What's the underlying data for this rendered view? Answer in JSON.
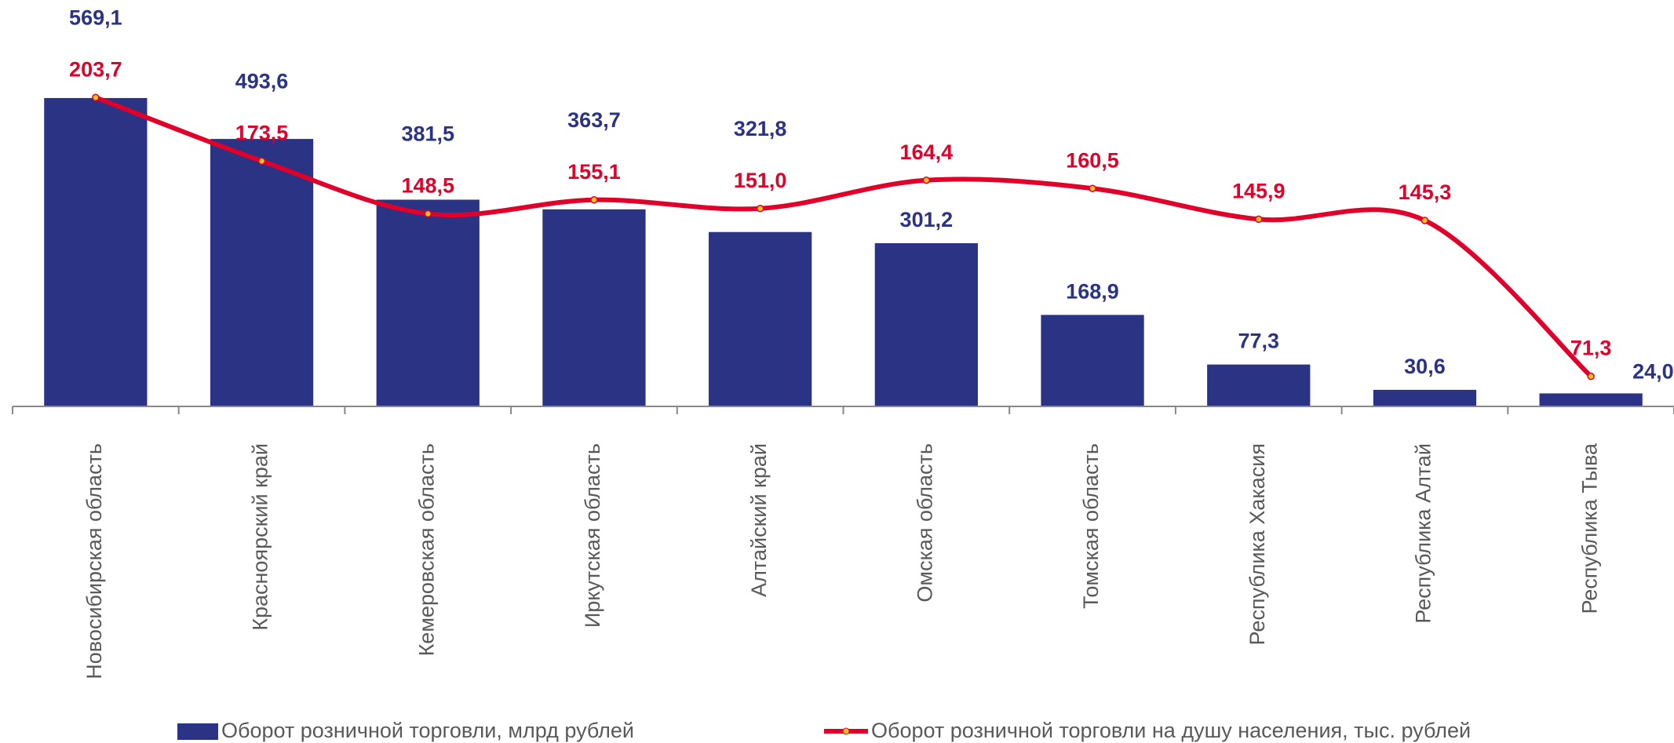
{
  "chart_data": {
    "type": "bar_line",
    "categories": [
      "Новосибирская область",
      "Красноярский край",
      "Кемеровская область",
      "Иркутская область",
      "Алтайский край",
      "Омская область",
      "Томская область",
      "Республика Хакасия",
      "Республика Алтай",
      "Республика Тыва"
    ],
    "series": [
      {
        "name": "Оборот розничной торговли, млрд рублей",
        "color": "#2b3384",
        "type": "bar",
        "values": [
          569.1,
          493.6,
          381.5,
          363.7,
          321.8,
          301.2,
          168.9,
          77.3,
          30.6,
          24.0
        ],
        "value_labels": [
          "569,1",
          "493,6",
          "381,5",
          "363,7",
          "321,8",
          "301,2",
          "168,9",
          "77,3",
          "30,6",
          "24,0"
        ]
      },
      {
        "name": "Оборот розничной торговли на душу населения, тыс. рублей",
        "color": "#e0002a",
        "type": "line",
        "axis": "y2",
        "values": [
          203.7,
          173.5,
          148.5,
          155.1,
          151.0,
          164.4,
          160.5,
          145.9,
          145.3,
          71.3
        ],
        "value_labels": [
          "203,7",
          "173,5",
          "148,5",
          "155,1",
          "151,0",
          "164,4",
          "160,5",
          "145,9",
          "145,3",
          "71,3"
        ]
      }
    ],
    "ylim": [
      0,
      750
    ],
    "y2lim": [
      57,
      250
    ]
  }
}
